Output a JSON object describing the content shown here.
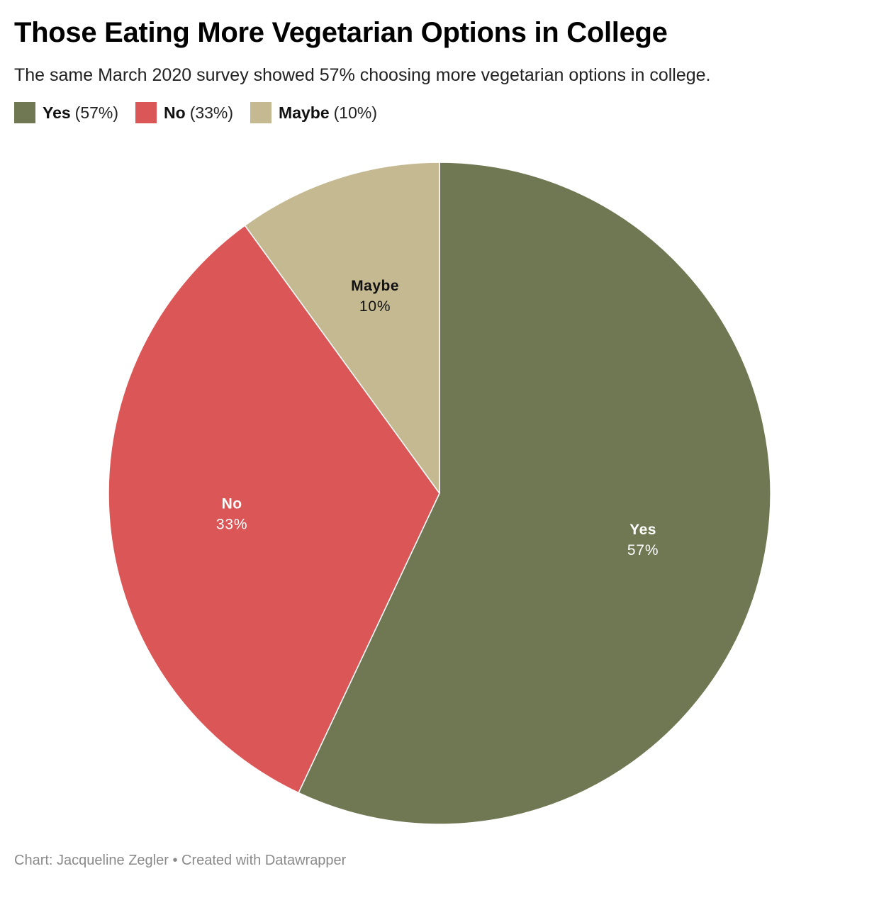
{
  "title": "Those Eating More Vegetarian Options in College",
  "subtitle": "The same March 2020 survey showed 57% choosing more vegetarian options in college.",
  "legend": [
    {
      "name": "Yes",
      "pct_label": "(57%)",
      "color": "#6f7753"
    },
    {
      "name": "No",
      "pct_label": "(33%)",
      "color": "#db5656"
    },
    {
      "name": "Maybe",
      "pct_label": "(10%)",
      "color": "#c4b990"
    }
  ],
  "footer": "Chart: Jacqueline Zegler • Created with Datawrapper",
  "chart_data": {
    "type": "pie",
    "title": "Those Eating More Vegetarian Options in College",
    "slices": [
      {
        "label": "Yes",
        "value": 57,
        "display": "57%",
        "color": "#6f7753",
        "label_color": "#ffffff"
      },
      {
        "label": "No",
        "value": 33,
        "display": "33%",
        "color": "#db5656",
        "label_color": "#ffffff"
      },
      {
        "label": "Maybe",
        "value": 10,
        "display": "10%",
        "color": "#c4b990",
        "label_color": "#111111"
      }
    ],
    "start": "12 o'clock",
    "direction": "clockwise",
    "legend_position": "top-left"
  }
}
